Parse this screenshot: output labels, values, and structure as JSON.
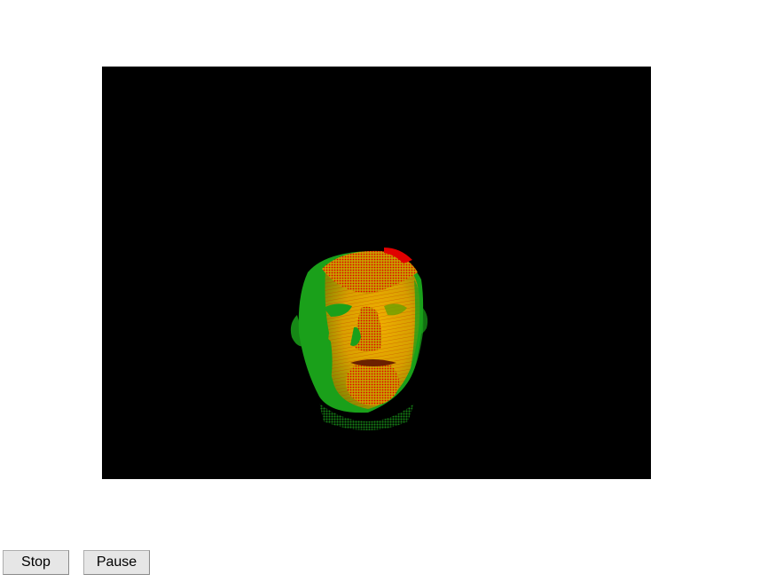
{
  "controls": {
    "stop_label": "Stop",
    "pause_label": "Pause"
  },
  "viewport": {
    "background_color": "#000000",
    "colors": {
      "red": "#e00000",
      "green": "#1aa01a",
      "yellow": "#e8c000",
      "orange": "#e07800"
    }
  }
}
